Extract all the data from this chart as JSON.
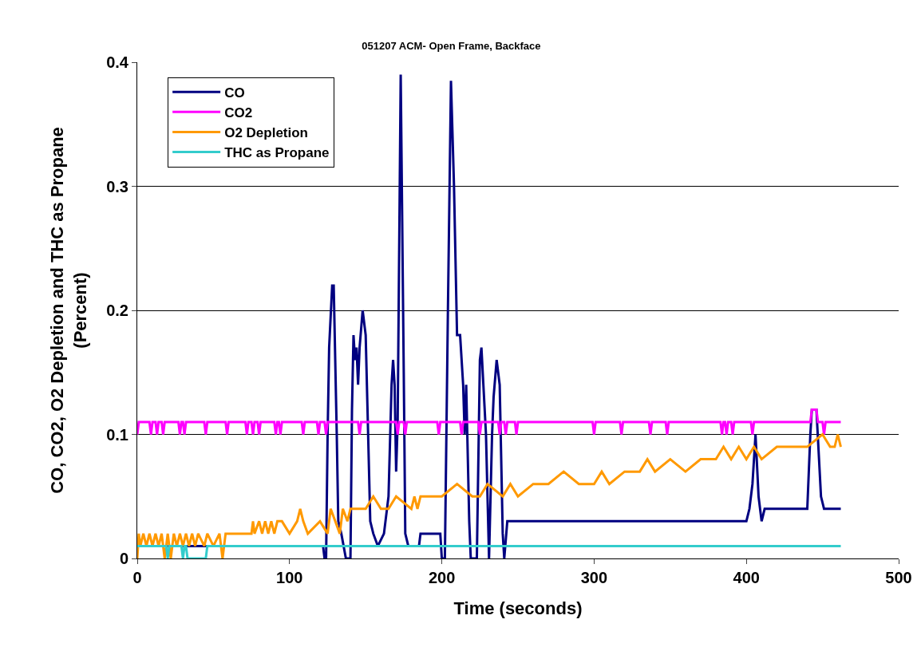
{
  "chart_data": {
    "type": "line",
    "title": "051207 ACM- Open Frame, Backface",
    "xlabel": "Time (seconds)",
    "ylabel": "CO, CO2, O2 Depletion and THC as Propane\n(Percent)",
    "xlim": [
      0,
      500
    ],
    "xticks": [
      0,
      100,
      200,
      300,
      400,
      500
    ],
    "ylim": [
      0,
      0.4
    ],
    "yticks": [
      0,
      0.1,
      0.2,
      0.3,
      0.4
    ],
    "grid": "y",
    "legend": "top left",
    "marker": "none",
    "line_style": "solid",
    "series": [
      {
        "name": "CO",
        "color": "#000080",
        "x": [
          0,
          122,
          123,
          124,
          125,
          126,
          128,
          129,
          131,
          132,
          134,
          137,
          140,
          141,
          142,
          143,
          144,
          145,
          146,
          148,
          150,
          152,
          153,
          155,
          158,
          162,
          165,
          167,
          168,
          169,
          170,
          171,
          173,
          175,
          176,
          178,
          185,
          186,
          187,
          199,
          200,
          202,
          204,
          206,
          208,
          210,
          212,
          214,
          215,
          216,
          218,
          219,
          223,
          225,
          226,
          229,
          231,
          233,
          234,
          236,
          238,
          240,
          241,
          243,
          400,
          402,
          404,
          406,
          408,
          410,
          412,
          440,
          442,
          443,
          446,
          449,
          451,
          462
        ],
        "values": [
          0.01,
          0.01,
          0,
          0,
          0.1,
          0.17,
          0.22,
          0.22,
          0.1,
          0.03,
          0.02,
          0,
          0,
          0.12,
          0.18,
          0.16,
          0.17,
          0.14,
          0.17,
          0.2,
          0.18,
          0.08,
          0.03,
          0.02,
          0.01,
          0.02,
          0.05,
          0.14,
          0.16,
          0.14,
          0.07,
          0.11,
          0.39,
          0.15,
          0.02,
          0.01,
          0.01,
          0.02,
          0.02,
          0.02,
          0,
          0,
          0.2,
          0.385,
          0.3,
          0.18,
          0.18,
          0.14,
          0.1,
          0.14,
          0.03,
          0,
          0,
          0.16,
          0.17,
          0.1,
          0,
          0.1,
          0.13,
          0.16,
          0.14,
          0.02,
          0,
          0.03,
          0.03,
          0.04,
          0.06,
          0.1,
          0.05,
          0.03,
          0.04,
          0.04,
          0.1,
          0.12,
          0.12,
          0.05,
          0.04,
          0.04
        ]
      },
      {
        "name": "CO2",
        "color": "#ff00ff",
        "x": [
          0,
          1,
          8,
          9,
          10,
          12,
          13,
          14,
          16,
          17,
          18,
          27,
          28,
          29,
          30,
          31,
          32,
          44,
          45,
          46,
          58,
          59,
          60,
          71,
          72,
          73,
          75,
          76,
          77,
          79,
          80,
          81,
          90,
          91,
          92,
          93,
          94,
          95,
          108,
          109,
          110,
          118,
          119,
          120,
          123,
          124,
          125,
          145,
          146,
          147,
          170,
          171,
          172,
          175,
          176,
          177,
          197,
          198,
          199,
          212,
          213,
          214,
          224,
          225,
          226,
          237,
          238,
          239,
          241,
          242,
          243,
          248,
          249,
          250,
          299,
          300,
          301,
          317,
          318,
          319,
          336,
          337,
          338,
          347,
          348,
          349,
          383,
          384,
          385,
          386,
          387,
          388,
          390,
          391,
          392,
          403,
          404,
          405,
          442,
          443,
          446,
          447,
          450,
          451,
          452,
          462
        ],
        "values": [
          0.1,
          0.11,
          0.11,
          0.1,
          0.11,
          0.11,
          0.1,
          0.11,
          0.11,
          0.1,
          0.11,
          0.11,
          0.1,
          0.11,
          0.11,
          0.1,
          0.11,
          0.11,
          0.1,
          0.11,
          0.11,
          0.1,
          0.11,
          0.11,
          0.1,
          0.11,
          0.11,
          0.1,
          0.11,
          0.11,
          0.1,
          0.11,
          0.11,
          0.1,
          0.11,
          0.11,
          0.1,
          0.11,
          0.11,
          0.1,
          0.11,
          0.11,
          0.1,
          0.11,
          0.11,
          0.1,
          0.11,
          0.11,
          0.1,
          0.11,
          0.11,
          0.1,
          0.11,
          0.11,
          0.1,
          0.11,
          0.11,
          0.1,
          0.11,
          0.11,
          0.1,
          0.11,
          0.11,
          0.1,
          0.11,
          0.11,
          0.1,
          0.11,
          0.11,
          0.1,
          0.11,
          0.11,
          0.1,
          0.11,
          0.11,
          0.1,
          0.11,
          0.11,
          0.1,
          0.11,
          0.11,
          0.1,
          0.11,
          0.11,
          0.1,
          0.11,
          0.11,
          0.1,
          0.11,
          0.11,
          0.1,
          0.11,
          0.11,
          0.1,
          0.11,
          0.11,
          0.1,
          0.11,
          0.11,
          0.12,
          0.12,
          0.11,
          0.11,
          0.1,
          0.11,
          0.11
        ]
      },
      {
        "name": "O2 Depletion",
        "color": "#ff9900",
        "x": [
          0,
          1,
          2,
          4,
          6,
          8,
          10,
          12,
          14,
          16,
          18,
          20,
          22,
          24,
          26,
          28,
          30,
          32,
          34,
          36,
          38,
          40,
          44,
          46,
          50,
          54,
          56,
          58,
          60,
          70,
          75,
          76,
          77,
          80,
          82,
          84,
          86,
          88,
          90,
          92,
          95,
          100,
          105,
          107,
          109,
          112,
          120,
          125,
          127,
          130,
          133,
          135,
          138,
          140,
          145,
          150,
          155,
          160,
          165,
          170,
          180,
          182,
          184,
          186,
          195,
          200,
          210,
          220,
          225,
          230,
          240,
          245,
          250,
          260,
          270,
          280,
          290,
          300,
          305,
          310,
          320,
          330,
          335,
          340,
          350,
          360,
          370,
          380,
          385,
          390,
          395,
          400,
          405,
          410,
          420,
          430,
          440,
          450,
          455,
          458,
          460,
          462
        ],
        "values": [
          0,
          0.02,
          0.01,
          0.02,
          0.01,
          0.02,
          0.01,
          0.02,
          0.01,
          0.02,
          0,
          0.02,
          0,
          0.02,
          0.01,
          0.02,
          0.01,
          0.02,
          0.01,
          0.02,
          0.01,
          0.02,
          0.01,
          0.02,
          0.01,
          0.02,
          0,
          0.02,
          0.02,
          0.02,
          0.02,
          0.03,
          0.02,
          0.03,
          0.02,
          0.03,
          0.02,
          0.03,
          0.02,
          0.03,
          0.03,
          0.02,
          0.03,
          0.04,
          0.03,
          0.02,
          0.03,
          0.02,
          0.04,
          0.03,
          0.02,
          0.04,
          0.03,
          0.04,
          0.04,
          0.04,
          0.05,
          0.04,
          0.04,
          0.05,
          0.04,
          0.05,
          0.04,
          0.05,
          0.05,
          0.05,
          0.06,
          0.05,
          0.05,
          0.06,
          0.05,
          0.06,
          0.05,
          0.06,
          0.06,
          0.07,
          0.06,
          0.06,
          0.07,
          0.06,
          0.07,
          0.07,
          0.08,
          0.07,
          0.08,
          0.07,
          0.08,
          0.08,
          0.09,
          0.08,
          0.09,
          0.08,
          0.09,
          0.08,
          0.09,
          0.09,
          0.09,
          0.1,
          0.09,
          0.09,
          0.1,
          0.09
        ]
      },
      {
        "name": "THC as Propane",
        "color": "#33cccc",
        "x": [
          0,
          19,
          20,
          21,
          29,
          30,
          31,
          32,
          33,
          45,
          46,
          462
        ],
        "values": [
          0.01,
          0.01,
          0,
          0.01,
          0.01,
          0,
          0.01,
          0.01,
          0,
          0,
          0.01,
          0.01
        ]
      }
    ]
  }
}
